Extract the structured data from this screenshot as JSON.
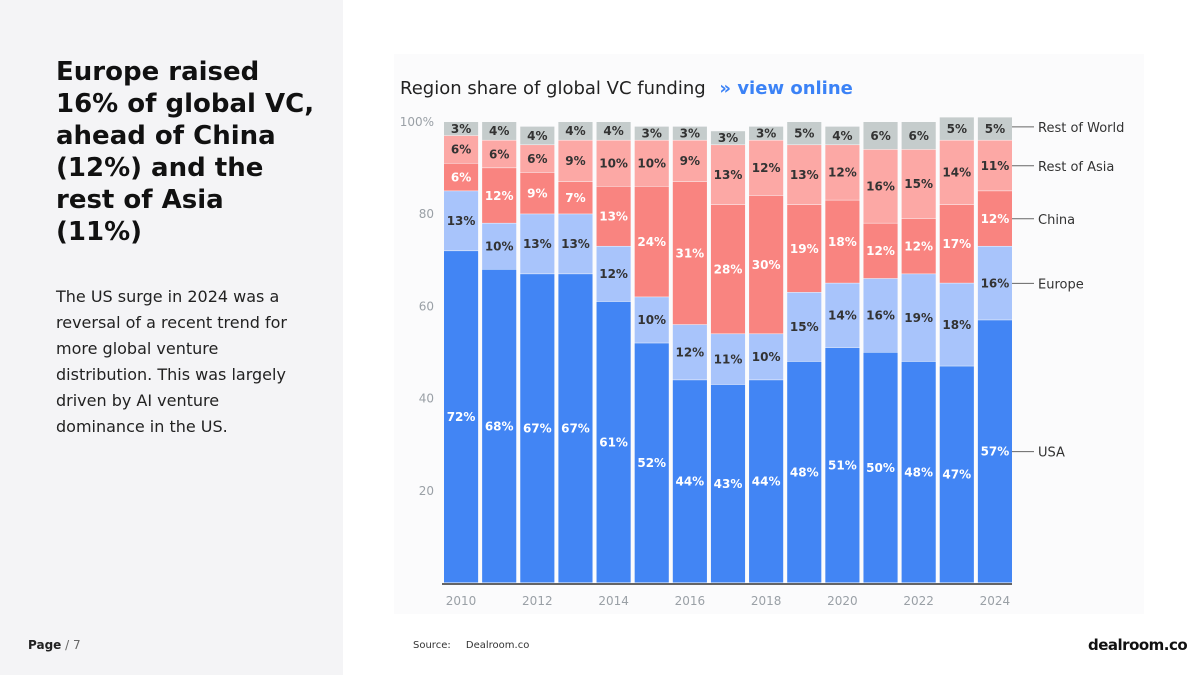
{
  "left_panel": {
    "headline": "Europe raised 16% of global VC, ahead of China (12%) and the rest of Asia (11%)",
    "body": "The US surge in 2024 was a reversal of a recent trend for more global venture distribution. This was largely driven by AI venture dominance in the US.",
    "page_label": "Page",
    "page_number": "/ 7"
  },
  "chart_header": {
    "title": "Region share of global VC funding",
    "link_arrow": "»",
    "link_text": "view online"
  },
  "footer": {
    "source_label": "Source:",
    "source_value": "Dealroom.co",
    "logo": "dealroom.co"
  },
  "colors": {
    "USA": "#4285f4",
    "Europe": "#a8c4fb",
    "China": "#f98480",
    "Rest of Asia": "#fca8a5",
    "Rest of World": "#c5cccc"
  },
  "chart_data": {
    "type": "bar",
    "stacked": true,
    "title": "Region share of global VC funding",
    "categories": [
      "2010",
      "2011",
      "2012",
      "2013",
      "2014",
      "2015",
      "2016",
      "2017",
      "2018",
      "2019",
      "2020",
      "2021",
      "2022",
      "2023",
      "2024"
    ],
    "x_tick_labels": [
      "2010",
      "2012",
      "2014",
      "2016",
      "2018",
      "2020",
      "2022",
      "2024"
    ],
    "y_ticks": [
      "100%",
      "80",
      "60",
      "40",
      "20"
    ],
    "ylim": [
      0,
      100
    ],
    "legend_position": "right",
    "series": [
      {
        "name": "USA",
        "values": [
          72,
          68,
          67,
          67,
          61,
          52,
          44,
          43,
          44,
          48,
          51,
          50,
          48,
          47,
          57
        ]
      },
      {
        "name": "Europe",
        "values": [
          13,
          10,
          13,
          13,
          12,
          10,
          12,
          11,
          10,
          15,
          14,
          16,
          19,
          18,
          16
        ]
      },
      {
        "name": "China",
        "values": [
          6,
          12,
          9,
          7,
          13,
          24,
          31,
          28,
          30,
          19,
          18,
          12,
          12,
          17,
          12
        ]
      },
      {
        "name": "Rest of Asia",
        "values": [
          6,
          6,
          6,
          9,
          10,
          10,
          9,
          13,
          12,
          13,
          12,
          16,
          15,
          14,
          11
        ]
      },
      {
        "name": "Rest of World",
        "values": [
          3,
          4,
          4,
          4,
          4,
          3,
          3,
          3,
          3,
          5,
          4,
          6,
          6,
          5,
          5
        ]
      }
    ]
  }
}
